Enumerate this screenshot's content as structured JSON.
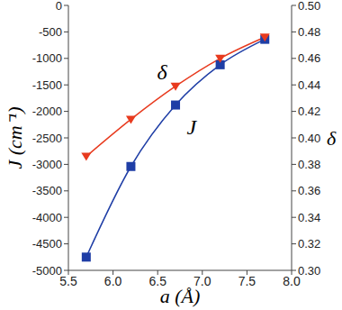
{
  "chart_data": {
    "type": "line",
    "x_label": "a (Å)",
    "y_label": "J (cm⁻¹)",
    "y2_label": "δ",
    "x": [
      5.7,
      6.2,
      6.7,
      7.2,
      7.7
    ],
    "series": [
      {
        "name": "J",
        "color": "#1f3ea6",
        "marker": "square",
        "values": [
          -4750,
          -3040,
          -1880,
          -1120,
          -640
        ]
      },
      {
        "name": "δ",
        "color": "#e83a1e",
        "marker": "triangle_down",
        "axis": "y2",
        "values": [
          0.386,
          0.414,
          0.439,
          0.46,
          0.476
        ]
      }
    ],
    "xlim": [
      5.5,
      8.0
    ],
    "xticks": [
      5.5,
      {
        "value": 6,
        "label": "6.0"
      },
      6.5,
      {
        "value": 7,
        "label": "7.0"
      },
      7.5,
      {
        "value": 8,
        "label": "8.0"
      }
    ],
    "ylim": [
      -5000,
      0
    ],
    "yticks": [
      -5000,
      -4500,
      -4000,
      -3500,
      -3000,
      -2500,
      -2000,
      -1500,
      -1000,
      -500,
      0
    ],
    "y2lim": [
      0.3,
      0.5
    ],
    "y2ticks": [
      {
        "value": 0.3,
        "label": "0.30"
      },
      0.32,
      0.34,
      0.36,
      0.38,
      {
        "value": 0.4,
        "label": "0.40"
      },
      0.42,
      0.44,
      0.46,
      0.48,
      {
        "value": 0.5,
        "label": "0.50"
      }
    ],
    "grid": false,
    "annotations": [
      {
        "text": "δ",
        "x": 6.55,
        "y": -1250
      },
      {
        "text": "J",
        "x": 6.88,
        "y": -2300
      }
    ]
  }
}
